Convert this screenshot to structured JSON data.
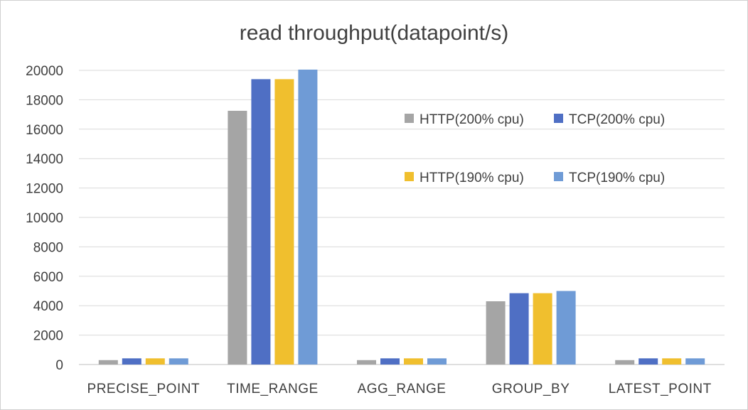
{
  "chart_data": {
    "type": "bar",
    "title": "read throughput(datapoint/s)",
    "xlabel": "",
    "ylabel": "",
    "ylim": [
      0,
      20000
    ],
    "yticks": [
      0,
      2000,
      4000,
      6000,
      8000,
      10000,
      12000,
      14000,
      16000,
      18000,
      20000
    ],
    "grid": true,
    "legend_position": "top-right",
    "categories": [
      "PRECISE_POINT",
      "TIME_RANGE",
      "AGG_RANGE",
      "GROUP_BY",
      "LATEST_POINT"
    ],
    "series": [
      {
        "name": "HTTP(200% cpu)",
        "color": "#a5a5a5",
        "values": [
          300,
          17250,
          300,
          4300,
          300
        ]
      },
      {
        "name": "TCP(200% cpu)",
        "color": "#4f6fc4",
        "values": [
          420,
          19400,
          420,
          4850,
          420
        ]
      },
      {
        "name": "HTTP(190% cpu)",
        "color": "#f0bf2e",
        "values": [
          420,
          19400,
          420,
          4850,
          420
        ]
      },
      {
        "name": "TCP(190% cpu)",
        "color": "#6f9bd6",
        "values": [
          420,
          20050,
          420,
          5000,
          420
        ]
      }
    ]
  }
}
